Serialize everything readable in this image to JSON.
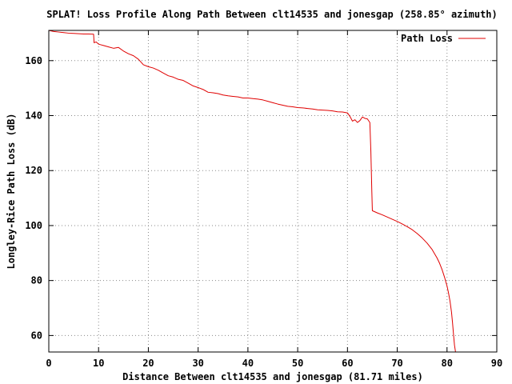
{
  "chart_data": {
    "type": "line",
    "title": "SPLAT! Loss Profile Along Path Between clt14535 and jonesgap (258.85° azimuth)",
    "xlabel": "Distance Between clt14535 and jonesgap (81.71 miles)",
    "ylabel": "Longley-Rice Path Loss (dB)",
    "xlim": [
      0,
      90
    ],
    "ylim": [
      54,
      171
    ],
    "x_ticks": [
      0,
      10,
      20,
      30,
      40,
      50,
      60,
      70,
      80,
      90
    ],
    "y_ticks": [
      60,
      80,
      100,
      120,
      140,
      160
    ],
    "grid": true,
    "legend_position": "top-right",
    "series": [
      {
        "name": "Path Loss",
        "color": "#e00000",
        "x": [
          0,
          1,
          2,
          3,
          4,
          5,
          6,
          7,
          8,
          9,
          9.1,
          9.5,
          10,
          11,
          12,
          13,
          14,
          15,
          16,
          17,
          18,
          19,
          20,
          21,
          22,
          23,
          24,
          25,
          26,
          27,
          28,
          29,
          30,
          31,
          32,
          33,
          34,
          35,
          36,
          37,
          38,
          39,
          40,
          41,
          42,
          43,
          44,
          45,
          46,
          47,
          48,
          49,
          50,
          51,
          52,
          53,
          54,
          55,
          56,
          57,
          58,
          59,
          60,
          60.5,
          61,
          61.5,
          62,
          62.5,
          63,
          63.5,
          64,
          64.5,
          64.7,
          64.9,
          65,
          66,
          67,
          68,
          69,
          70,
          71,
          72,
          73,
          74,
          75,
          76,
          77,
          78,
          78.5,
          79,
          79.5,
          80,
          80.3,
          80.6,
          80.9,
          81.1,
          81.3,
          81.5,
          81.71
        ],
        "y": [
          171,
          170.6,
          170.4,
          170.2,
          170,
          169.9,
          169.8,
          169.7,
          169.7,
          169.6,
          166.5,
          166.8,
          166,
          165.5,
          165,
          164.5,
          164.8,
          163.5,
          162.5,
          161.8,
          160.5,
          158.5,
          157.8,
          157.3,
          156.5,
          155.5,
          154.5,
          154,
          153.2,
          152.8,
          151.8,
          150.8,
          150.2,
          149.5,
          148.5,
          148.3,
          148,
          147.5,
          147.2,
          147,
          146.8,
          146.4,
          146.4,
          146.2,
          146,
          145.7,
          145.2,
          144.7,
          144.2,
          143.8,
          143.4,
          143.2,
          142.9,
          142.8,
          142.6,
          142.4,
          142.1,
          142,
          141.9,
          141.7,
          141.4,
          141.3,
          141,
          139.7,
          138,
          138.5,
          137.5,
          138.2,
          139.5,
          139,
          138.8,
          137.5,
          127,
          112,
          105.4,
          104.6,
          103.9,
          103.1,
          102.3,
          101.5,
          100.6,
          99.6,
          98.5,
          97.1,
          95.5,
          93.6,
          91.3,
          88.2,
          86.3,
          84,
          81.2,
          78,
          75.5,
          72.5,
          68.5,
          64.8,
          60.5,
          56.5,
          54
        ]
      }
    ]
  }
}
